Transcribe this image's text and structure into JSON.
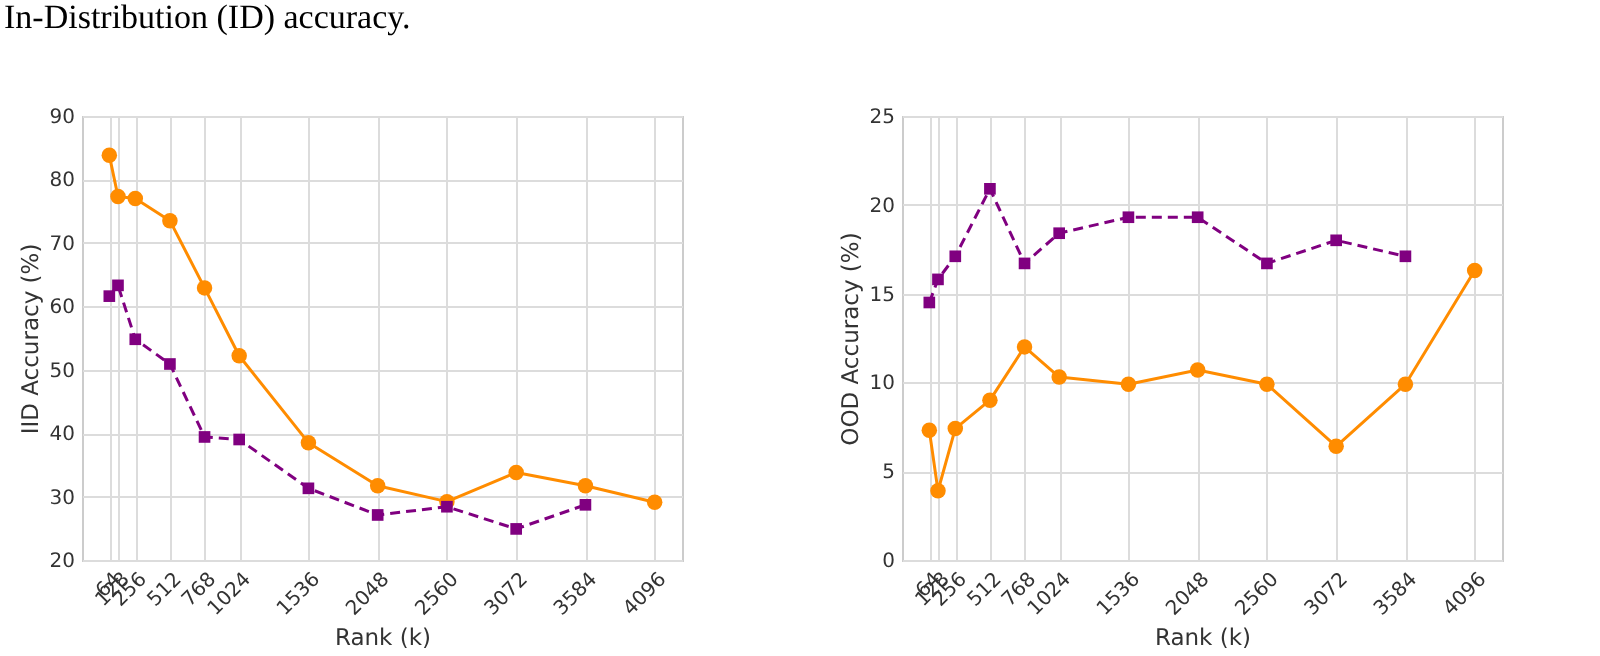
{
  "chart_data": [
    {
      "type": "line",
      "xlabel": "Rank (k)",
      "ylabel": "IID Accuracy (%)",
      "annotations": [
        "In-Distribution (ID) accuracy."
      ],
      "x": [
        64,
        128,
        256,
        512,
        768,
        1024,
        1536,
        2048,
        2560,
        3072,
        3584,
        4096
      ],
      "series": [
        {
          "color": "#ff8c00",
          "marker": "circle",
          "line_style": "solid",
          "values": [
            83.8,
            77.3,
            77.0,
            73.5,
            62.9,
            52.2,
            38.5,
            31.7,
            29.2,
            33.8,
            31.7,
            29.1
          ]
        },
        {
          "color": "#800080",
          "marker": "square",
          "line_style": "dashed",
          "values": [
            61.6,
            63.3,
            54.8,
            50.9,
            39.4,
            39.0,
            31.3,
            27.1,
            28.4,
            24.9,
            28.7,
            null
          ]
        }
      ],
      "xlim": [
        -138,
        4298
      ],
      "xticks": [
        64,
        128,
        256,
        512,
        768,
        1024,
        1536,
        2048,
        2560,
        3072,
        3584,
        4096
      ],
      "ylim": [
        20,
        90
      ],
      "yticks": [
        20,
        30,
        40,
        50,
        60,
        70,
        80,
        90
      ],
      "grid": true
    },
    {
      "type": "line",
      "xlabel": "Rank (k)",
      "ylabel": "OOD Accuracy (%)",
      "x": [
        64,
        128,
        256,
        512,
        768,
        1024,
        1536,
        2048,
        2560,
        3072,
        3584,
        4096
      ],
      "series": [
        {
          "color": "#ff8c00",
          "marker": "circle",
          "line_style": "solid",
          "values": [
            7.3,
            3.9,
            7.4,
            9.0,
            12.0,
            10.3,
            9.9,
            10.7,
            9.9,
            6.4,
            9.9,
            16.3
          ]
        },
        {
          "color": "#800080",
          "marker": "square",
          "line_style": "dashed",
          "values": [
            14.5,
            15.8,
            17.1,
            20.9,
            16.7,
            18.4,
            19.3,
            19.3,
            16.7,
            18.0,
            17.1,
            null
          ]
        }
      ],
      "xlim": [
        -138,
        4298
      ],
      "xticks": [
        64,
        128,
        256,
        512,
        768,
        1024,
        1536,
        2048,
        2560,
        3072,
        3584,
        4096
      ],
      "ylim": [
        0,
        25
      ],
      "yticks": [
        0,
        5,
        10,
        15,
        20,
        25
      ],
      "grid": true
    }
  ]
}
